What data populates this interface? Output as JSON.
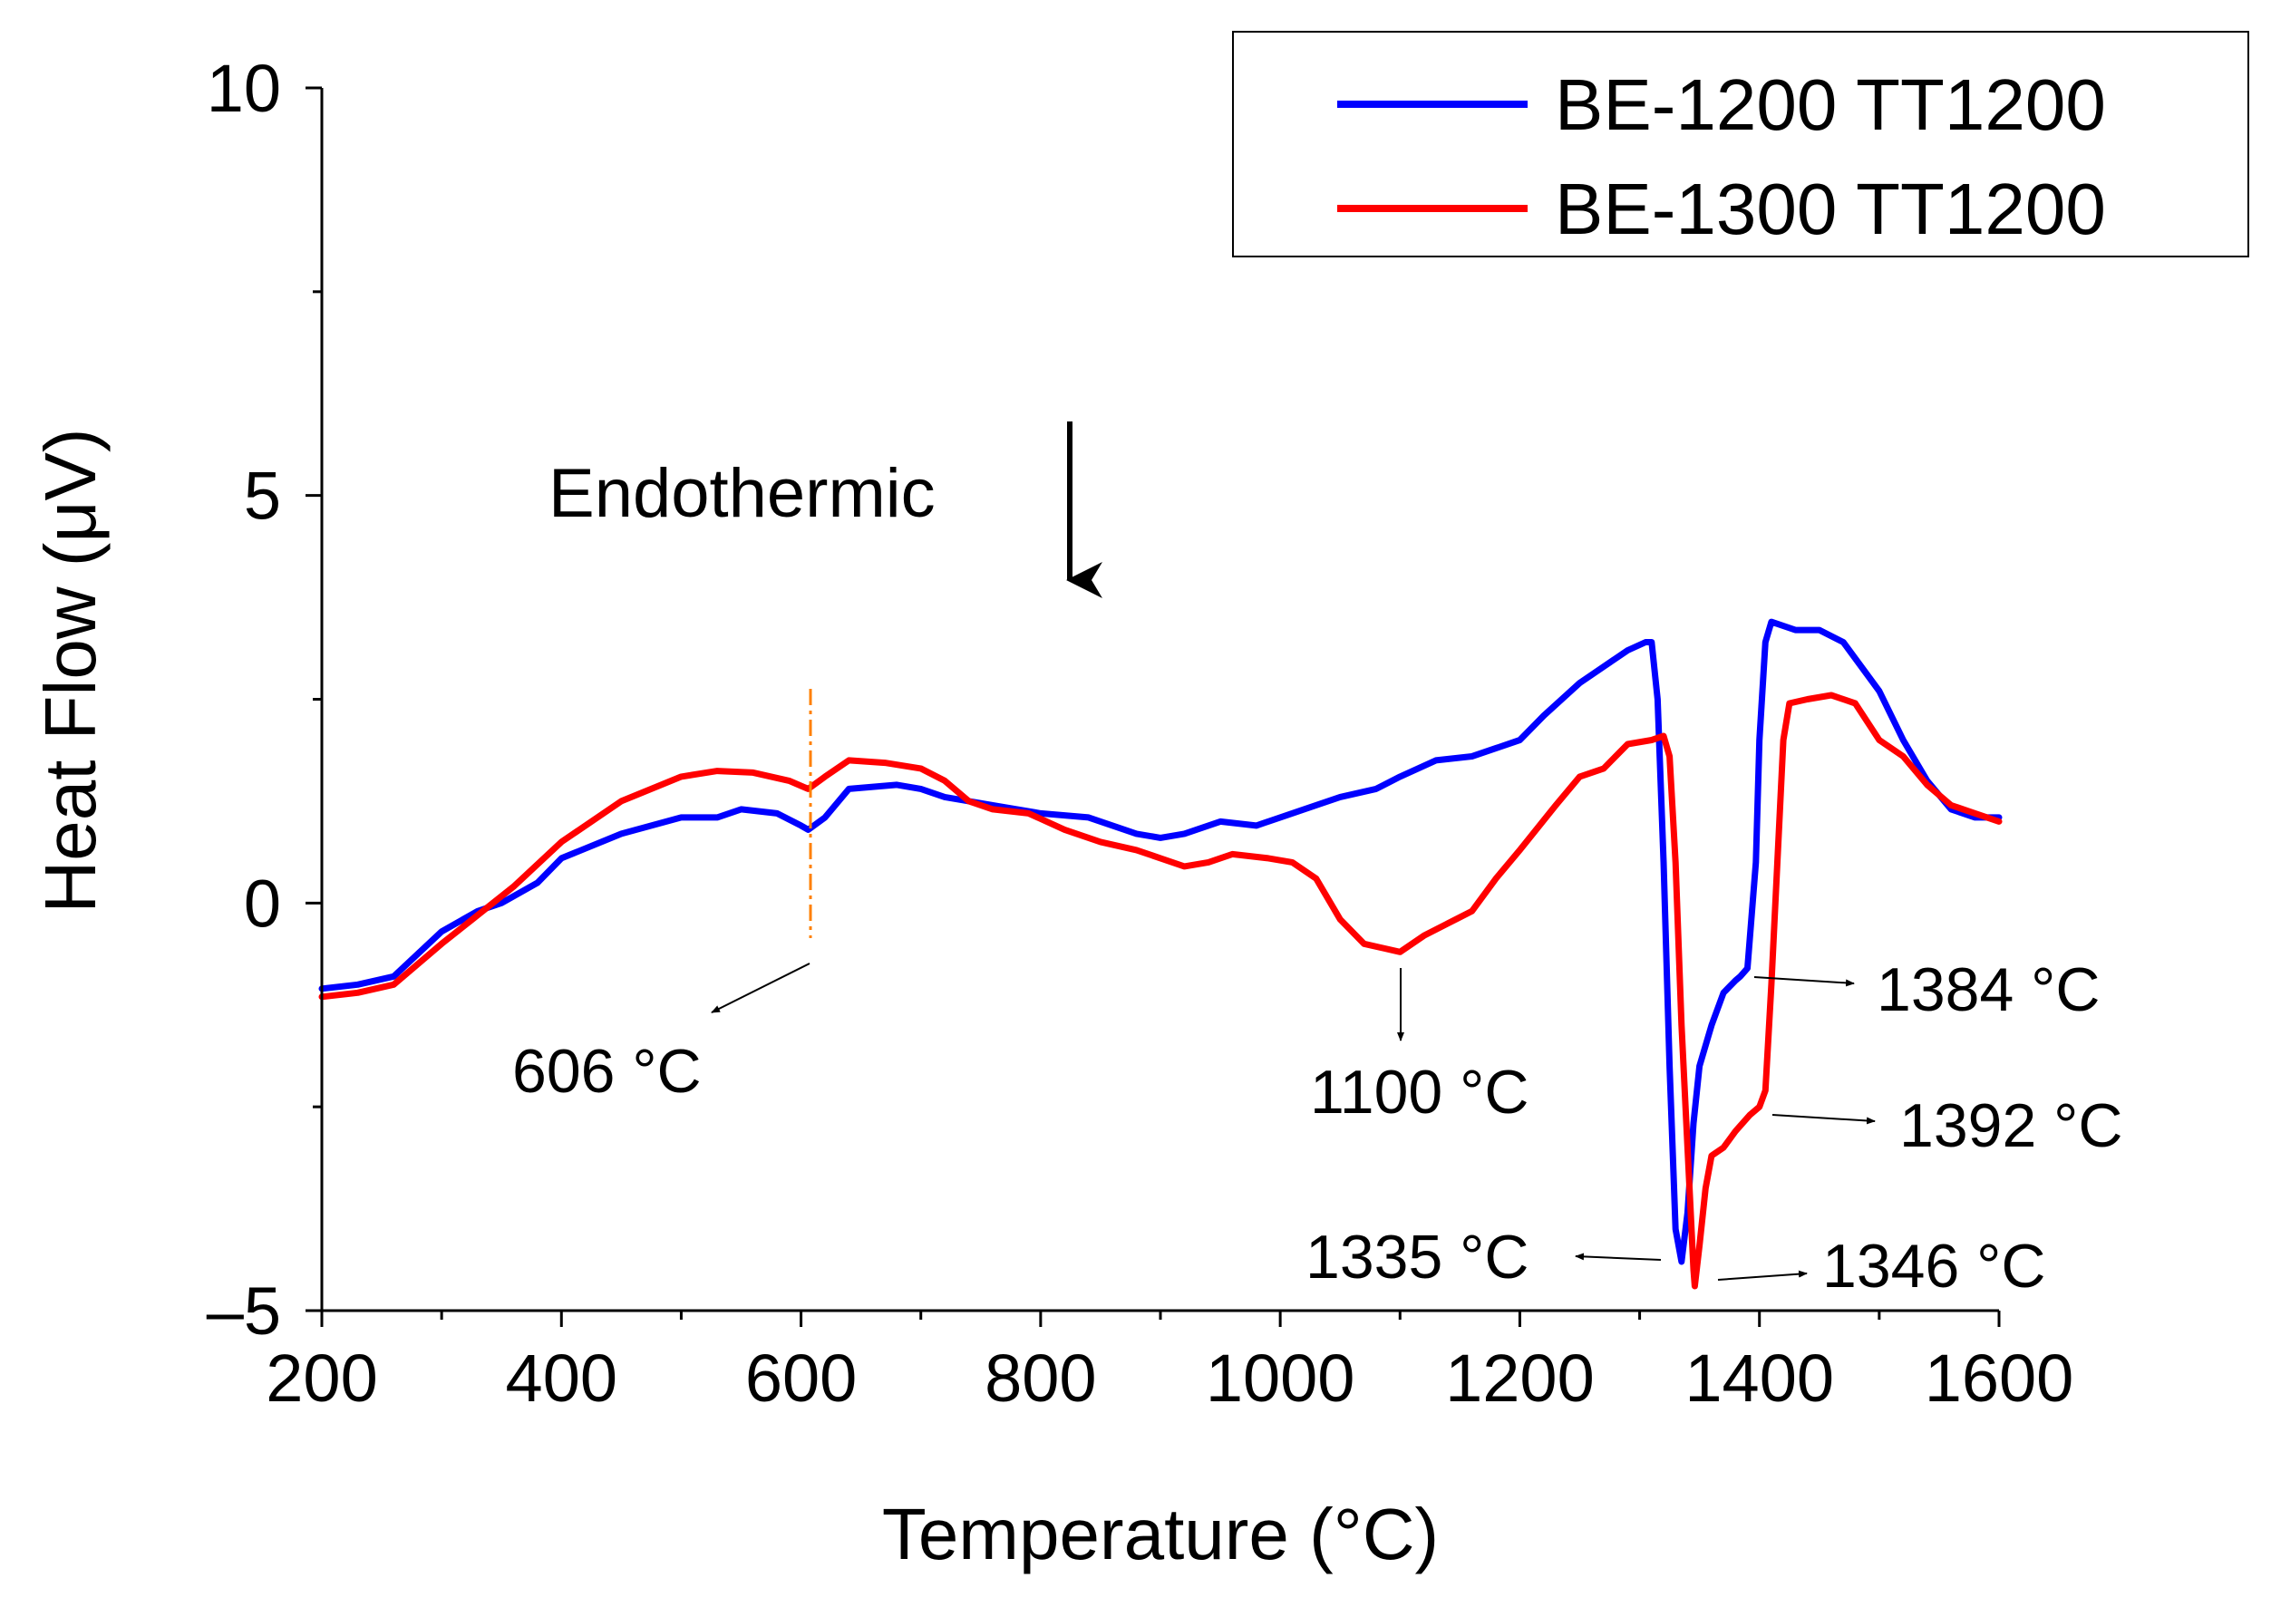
{
  "chart_data": {
    "type": "line",
    "xlabel": "Temperature (°C)",
    "ylabel": "Heat Flow (μV)",
    "xlim": [
      200,
      1600
    ],
    "ylim": [
      -5,
      10
    ],
    "x_ticks": [
      200,
      400,
      600,
      800,
      1000,
      1200,
      1400,
      1600
    ],
    "y_ticks": [
      -5,
      0,
      5,
      10
    ],
    "y_tick_labels": [
      "–5",
      "0",
      "5",
      "10"
    ],
    "legend_position": "top-right",
    "series": [
      {
        "name": "BE-1200 TT1200",
        "color": "#0000ff",
        "points": [
          [
            200,
            -1.05
          ],
          [
            230,
            -1.0
          ],
          [
            260,
            -0.9
          ],
          [
            300,
            -0.35
          ],
          [
            330,
            -0.1
          ],
          [
            350,
            0.0
          ],
          [
            380,
            0.25
          ],
          [
            400,
            0.55
          ],
          [
            450,
            0.85
          ],
          [
            500,
            1.05
          ],
          [
            530,
            1.05
          ],
          [
            550,
            1.15
          ],
          [
            580,
            1.1
          ],
          [
            600,
            0.95
          ],
          [
            606,
            0.9
          ],
          [
            620,
            1.05
          ],
          [
            640,
            1.4
          ],
          [
            680,
            1.45
          ],
          [
            700,
            1.4
          ],
          [
            720,
            1.3
          ],
          [
            760,
            1.2
          ],
          [
            800,
            1.1
          ],
          [
            840,
            1.05
          ],
          [
            880,
            0.85
          ],
          [
            900,
            0.8
          ],
          [
            920,
            0.85
          ],
          [
            950,
            1.0
          ],
          [
            980,
            0.95
          ],
          [
            1000,
            1.05
          ],
          [
            1050,
            1.3
          ],
          [
            1080,
            1.4
          ],
          [
            1100,
            1.55
          ],
          [
            1130,
            1.75
          ],
          [
            1160,
            1.8
          ],
          [
            1180,
            1.9
          ],
          [
            1200,
            2.0
          ],
          [
            1220,
            2.3
          ],
          [
            1250,
            2.7
          ],
          [
            1270,
            2.9
          ],
          [
            1290,
            3.1
          ],
          [
            1305,
            3.2
          ],
          [
            1310,
            3.2
          ],
          [
            1315,
            2.5
          ],
          [
            1320,
            0.5
          ],
          [
            1325,
            -2.0
          ],
          [
            1330,
            -4.0
          ],
          [
            1335,
            -4.4
          ],
          [
            1340,
            -3.8
          ],
          [
            1345,
            -2.7
          ],
          [
            1350,
            -2.0
          ],
          [
            1360,
            -1.5
          ],
          [
            1370,
            -1.1
          ],
          [
            1380,
            -0.95
          ],
          [
            1384,
            -0.9
          ],
          [
            1390,
            -0.8
          ],
          [
            1397,
            0.5
          ],
          [
            1400,
            2.0
          ],
          [
            1405,
            3.2
          ],
          [
            1410,
            3.45
          ],
          [
            1430,
            3.35
          ],
          [
            1450,
            3.35
          ],
          [
            1470,
            3.2
          ],
          [
            1500,
            2.6
          ],
          [
            1520,
            2.0
          ],
          [
            1540,
            1.5
          ],
          [
            1560,
            1.15
          ],
          [
            1580,
            1.05
          ],
          [
            1600,
            1.05
          ]
        ]
      },
      {
        "name": "BE-1300 TT1200",
        "color": "#ff0000",
        "points": [
          [
            200,
            -1.15
          ],
          [
            230,
            -1.1
          ],
          [
            260,
            -1.0
          ],
          [
            300,
            -0.5
          ],
          [
            330,
            -0.15
          ],
          [
            360,
            0.2
          ],
          [
            400,
            0.75
          ],
          [
            450,
            1.25
          ],
          [
            500,
            1.55
          ],
          [
            530,
            1.62
          ],
          [
            560,
            1.6
          ],
          [
            590,
            1.5
          ],
          [
            606,
            1.4
          ],
          [
            620,
            1.55
          ],
          [
            640,
            1.75
          ],
          [
            670,
            1.72
          ],
          [
            700,
            1.65
          ],
          [
            720,
            1.5
          ],
          [
            740,
            1.25
          ],
          [
            760,
            1.15
          ],
          [
            790,
            1.1
          ],
          [
            820,
            0.9
          ],
          [
            850,
            0.75
          ],
          [
            880,
            0.65
          ],
          [
            900,
            0.55
          ],
          [
            920,
            0.45
          ],
          [
            940,
            0.5
          ],
          [
            960,
            0.6
          ],
          [
            990,
            0.55
          ],
          [
            1010,
            0.5
          ],
          [
            1030,
            0.3
          ],
          [
            1050,
            -0.2
          ],
          [
            1070,
            -0.5
          ],
          [
            1100,
            -0.6
          ],
          [
            1120,
            -0.4
          ],
          [
            1140,
            -0.25
          ],
          [
            1160,
            -0.1
          ],
          [
            1180,
            0.3
          ],
          [
            1200,
            0.65
          ],
          [
            1230,
            1.2
          ],
          [
            1250,
            1.55
          ],
          [
            1270,
            1.65
          ],
          [
            1290,
            1.95
          ],
          [
            1310,
            2.0
          ],
          [
            1320,
            2.05
          ],
          [
            1325,
            1.8
          ],
          [
            1330,
            0.5
          ],
          [
            1335,
            -1.5
          ],
          [
            1340,
            -3.0
          ],
          [
            1345,
            -4.5
          ],
          [
            1346,
            -4.7
          ],
          [
            1350,
            -4.2
          ],
          [
            1355,
            -3.5
          ],
          [
            1360,
            -3.1
          ],
          [
            1370,
            -3.0
          ],
          [
            1380,
            -2.8
          ],
          [
            1392,
            -2.6
          ],
          [
            1400,
            -2.5
          ],
          [
            1405,
            -2.3
          ],
          [
            1410,
            -1.0
          ],
          [
            1415,
            0.5
          ],
          [
            1420,
            2.0
          ],
          [
            1425,
            2.45
          ],
          [
            1440,
            2.5
          ],
          [
            1460,
            2.55
          ],
          [
            1480,
            2.45
          ],
          [
            1500,
            2.0
          ],
          [
            1520,
            1.8
          ],
          [
            1540,
            1.45
          ],
          [
            1560,
            1.2
          ],
          [
            1580,
            1.1
          ],
          [
            1600,
            1.0
          ]
        ]
      }
    ],
    "annotations": [
      {
        "label": "606 °C",
        "x": 606
      },
      {
        "label": "1100 °C",
        "x": 1100
      },
      {
        "label": "1384 °C",
        "x": 1384
      },
      {
        "label": "1392 °C",
        "x": 1392
      },
      {
        "label": "1335 °C",
        "x": 1335
      },
      {
        "label": "1346 °C",
        "x": 1346
      }
    ],
    "endothermic_label": "Endothermic"
  }
}
